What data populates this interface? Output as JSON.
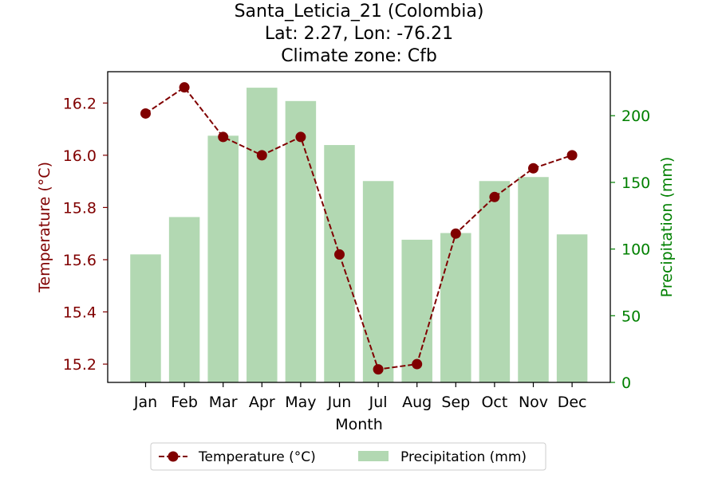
{
  "chart_data": {
    "type": "bar+line",
    "title_lines": [
      "Santa_Leticia_21 (Colombia)",
      "Lat: 2.27, Lon: -76.21",
      "Climate zone: Cfb"
    ],
    "xlabel": "Month",
    "ylabel_left": "Temperature (°C)",
    "ylabel_right": "Precipitation (mm)",
    "categories": [
      "Jan",
      "Feb",
      "Mar",
      "Apr",
      "May",
      "Jun",
      "Jul",
      "Aug",
      "Sep",
      "Oct",
      "Nov",
      "Dec"
    ],
    "temperature": {
      "name": "Temperature (°C)",
      "values": [
        16.16,
        16.26,
        16.07,
        16.0,
        16.07,
        15.62,
        15.18,
        15.2,
        15.7,
        15.84,
        15.95,
        16.0
      ],
      "color": "#800000",
      "ylim": [
        15.13,
        16.32
      ],
      "ticks": [
        15.2,
        15.4,
        15.6,
        15.8,
        16.0,
        16.2
      ],
      "tick_labels": [
        "15.2",
        "15.4",
        "15.6",
        "15.8",
        "16.0",
        "16.2"
      ]
    },
    "precipitation": {
      "name": "Precipitation (mm)",
      "values": [
        96,
        124,
        185,
        221,
        211,
        178,
        151,
        107,
        112,
        151,
        154,
        111
      ],
      "color": "#b2d8b2",
      "ylim": [
        0,
        233
      ],
      "ticks": [
        0,
        50,
        100,
        150,
        200
      ],
      "tick_labels": [
        "0",
        "50",
        "100",
        "150",
        "200"
      ]
    },
    "axis_colors": {
      "left": "#800000",
      "right": "#008000"
    },
    "grid": false,
    "legend_position": "bottom-center"
  }
}
